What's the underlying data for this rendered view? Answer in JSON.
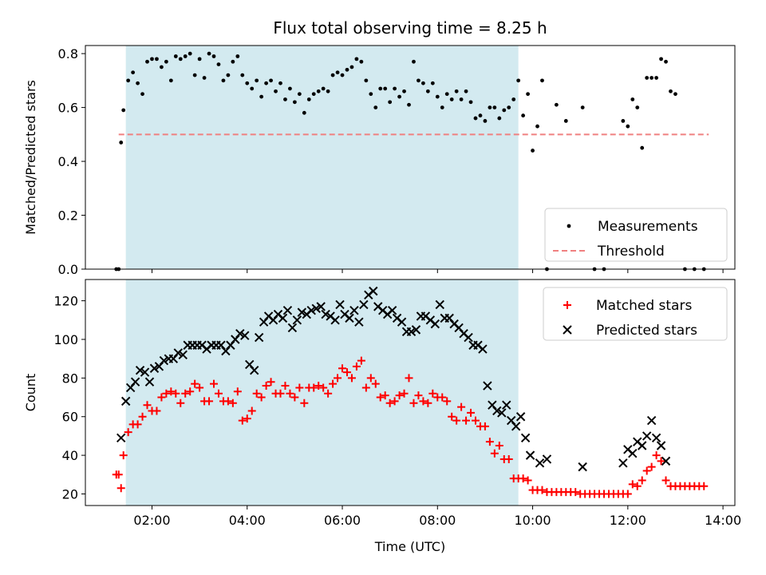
{
  "title": "Flux total observing time = 8.25 h",
  "chart_data": [
    {
      "type": "scatter",
      "panel": "top",
      "ylabel": "Matched/Predicted stars",
      "xlim": [
        0.6,
        14.25
      ],
      "ylim": [
        0,
        0.83
      ],
      "yticks": [
        0,
        0.2,
        0.4,
        0.6,
        0.8
      ],
      "ytick_labels": [
        "0.0",
        "0.2",
        "0.4",
        "0.6",
        "0.8"
      ],
      "shaded_interval": {
        "x": [
          1.45,
          9.7
        ],
        "color": "#d3eaf0"
      },
      "legend": {
        "placement": "lower-right",
        "entries": [
          "Measurements",
          "Threshold"
        ]
      },
      "threshold": {
        "name": "Threshold",
        "value": 0.5,
        "x": [
          1.3,
          13.7
        ],
        "color": "#f08080",
        "style": "dashed"
      },
      "series": [
        {
          "name": "Measurements",
          "color": "#000000",
          "marker": "dot",
          "x": [
            1.25,
            1.3,
            1.35,
            1.4,
            1.5,
            1.6,
            1.7,
            1.8,
            1.9,
            2.0,
            2.1,
            2.2,
            2.3,
            2.4,
            2.5,
            2.6,
            2.7,
            2.8,
            2.9,
            3.0,
            3.1,
            3.2,
            3.3,
            3.4,
            3.5,
            3.6,
            3.7,
            3.8,
            3.9,
            4.0,
            4.1,
            4.2,
            4.3,
            4.4,
            4.5,
            4.6,
            4.7,
            4.8,
            4.9,
            5.0,
            5.1,
            5.2,
            5.3,
            5.4,
            5.5,
            5.6,
            5.7,
            5.8,
            5.9,
            6.0,
            6.1,
            6.2,
            6.3,
            6.4,
            6.5,
            6.6,
            6.7,
            6.8,
            6.9,
            7.0,
            7.1,
            7.2,
            7.3,
            7.4,
            7.5,
            7.6,
            7.7,
            7.8,
            7.9,
            8.0,
            8.1,
            8.2,
            8.3,
            8.4,
            8.5,
            8.6,
            8.7,
            8.8,
            8.9,
            9.0,
            9.1,
            9.2,
            9.3,
            9.4,
            9.5,
            9.6,
            9.7,
            9.8,
            9.9,
            10.0,
            10.1,
            10.2,
            10.3,
            10.5,
            10.7,
            11.05,
            11.3,
            11.5,
            11.9,
            12.0,
            12.1,
            12.2,
            12.3,
            12.4,
            12.5,
            12.6,
            12.7,
            12.8,
            12.9,
            13.0,
            13.2,
            13.4,
            13.6
          ],
          "y": [
            0.0,
            0.0,
            0.47,
            0.59,
            0.7,
            0.73,
            0.69,
            0.65,
            0.77,
            0.78,
            0.78,
            0.75,
            0.77,
            0.7,
            0.79,
            0.78,
            0.79,
            0.8,
            0.72,
            0.78,
            0.71,
            0.8,
            0.79,
            0.76,
            0.7,
            0.72,
            0.77,
            0.79,
            0.72,
            0.69,
            0.67,
            0.7,
            0.64,
            0.69,
            0.7,
            0.66,
            0.69,
            0.63,
            0.67,
            0.62,
            0.65,
            0.58,
            0.63,
            0.65,
            0.66,
            0.67,
            0.66,
            0.72,
            0.73,
            0.72,
            0.74,
            0.75,
            0.78,
            0.77,
            0.7,
            0.65,
            0.6,
            0.67,
            0.67,
            0.62,
            0.67,
            0.64,
            0.66,
            0.61,
            0.77,
            0.7,
            0.69,
            0.66,
            0.69,
            0.64,
            0.6,
            0.65,
            0.63,
            0.66,
            0.63,
            0.66,
            0.62,
            0.56,
            0.57,
            0.55,
            0.6,
            0.6,
            0.56,
            0.59,
            0.6,
            0.63,
            0.7,
            0.57,
            0.65,
            0.44,
            0.53,
            0.7,
            0.0,
            0.61,
            0.55,
            0.6,
            0.0,
            0.0,
            0.55,
            0.53,
            0.63,
            0.6,
            0.45,
            0.71,
            0.71,
            0.71,
            0.78,
            0.77,
            0.66,
            0.65,
            0.0,
            0.0,
            0.0
          ]
        }
      ]
    },
    {
      "type": "scatter",
      "panel": "bottom",
      "xlabel": "Time (UTC)",
      "ylabel": "Count",
      "xlim": [
        0.6,
        14.25
      ],
      "ylim": [
        14,
        131
      ],
      "xticks": [
        2,
        4,
        6,
        8,
        10,
        12,
        14
      ],
      "xtick_labels": [
        "02:00",
        "04:00",
        "06:00",
        "08:00",
        "10:00",
        "12:00",
        "14:00"
      ],
      "yticks": [
        20,
        40,
        60,
        80,
        100,
        120
      ],
      "ytick_labels": [
        "20",
        "40",
        "60",
        "80",
        "100",
        "120"
      ],
      "shaded_interval": {
        "x": [
          1.45,
          9.7
        ],
        "color": "#d3eaf0"
      },
      "legend": {
        "placement": "top-right",
        "entries": [
          "Matched stars",
          "Predicted stars"
        ]
      },
      "series": [
        {
          "name": "Matched stars",
          "color": "#ff0000",
          "marker": "plus",
          "x": [
            1.25,
            1.3,
            1.35,
            1.4,
            1.5,
            1.6,
            1.7,
            1.8,
            1.9,
            2.0,
            2.1,
            2.2,
            2.3,
            2.4,
            2.5,
            2.6,
            2.7,
            2.8,
            2.9,
            3.0,
            3.1,
            3.2,
            3.3,
            3.4,
            3.5,
            3.6,
            3.7,
            3.8,
            3.9,
            4.0,
            4.1,
            4.2,
            4.3,
            4.4,
            4.5,
            4.6,
            4.7,
            4.8,
            4.9,
            5.0,
            5.1,
            5.2,
            5.3,
            5.4,
            5.5,
            5.6,
            5.7,
            5.8,
            5.9,
            6.0,
            6.1,
            6.2,
            6.3,
            6.4,
            6.5,
            6.6,
            6.7,
            6.8,
            6.9,
            7.0,
            7.1,
            7.2,
            7.3,
            7.4,
            7.5,
            7.6,
            7.7,
            7.8,
            7.9,
            8.0,
            8.1,
            8.2,
            8.3,
            8.4,
            8.5,
            8.6,
            8.7,
            8.8,
            8.9,
            9.0,
            9.1,
            9.2,
            9.3,
            9.4,
            9.5,
            9.6,
            9.7,
            9.8,
            9.9,
            10.0,
            10.1,
            10.2,
            10.3,
            10.4,
            10.5,
            10.6,
            10.7,
            10.8,
            10.9,
            11.0,
            11.1,
            11.2,
            11.3,
            11.4,
            11.5,
            11.6,
            11.7,
            11.8,
            11.9,
            12.0,
            12.1,
            12.2,
            12.3,
            12.4,
            12.5,
            12.6,
            12.7,
            12.8,
            12.9,
            13.0,
            13.1,
            13.2,
            13.3,
            13.4,
            13.5,
            13.6
          ],
          "y": [
            30,
            30,
            23,
            40,
            52,
            56,
            56,
            60,
            66,
            63,
            63,
            70,
            72,
            73,
            72,
            67,
            72,
            73,
            77,
            75,
            68,
            68,
            77,
            72,
            68,
            68,
            67,
            73,
            58,
            59,
            63,
            72,
            70,
            76,
            78,
            72,
            72,
            76,
            72,
            70,
            75,
            67,
            75,
            75,
            76,
            75,
            72,
            77,
            80,
            85,
            83,
            80,
            86,
            89,
            75,
            80,
            77,
            70,
            71,
            67,
            68,
            71,
            72,
            80,
            67,
            71,
            68,
            67,
            72,
            70,
            70,
            68,
            60,
            58,
            65,
            58,
            62,
            58,
            55,
            55,
            47,
            41,
            45,
            38,
            38,
            28,
            28,
            28,
            27,
            22,
            22,
            22,
            21,
            21,
            21,
            21,
            21,
            21,
            21,
            20,
            20,
            20,
            20,
            20,
            20,
            20,
            20,
            20,
            20,
            20,
            25,
            24,
            27,
            32,
            34,
            40,
            37,
            27,
            24,
            24,
            24,
            24,
            24,
            24,
            24,
            24
          ]
        },
        {
          "name": "Predicted stars",
          "color": "#000000",
          "marker": "x",
          "x": [
            1.35,
            1.45,
            1.55,
            1.65,
            1.75,
            1.85,
            1.95,
            2.05,
            2.15,
            2.25,
            2.35,
            2.45,
            2.55,
            2.65,
            2.75,
            2.85,
            2.95,
            3.05,
            3.15,
            3.25,
            3.35,
            3.45,
            3.55,
            3.65,
            3.75,
            3.85,
            3.95,
            4.05,
            4.15,
            4.25,
            4.35,
            4.45,
            4.55,
            4.65,
            4.75,
            4.85,
            4.95,
            5.05,
            5.15,
            5.25,
            5.35,
            5.45,
            5.55,
            5.65,
            5.75,
            5.85,
            5.95,
            6.05,
            6.15,
            6.25,
            6.35,
            6.45,
            6.55,
            6.65,
            6.75,
            6.85,
            6.95,
            7.05,
            7.15,
            7.25,
            7.35,
            7.45,
            7.55,
            7.65,
            7.75,
            7.85,
            7.95,
            8.05,
            8.15,
            8.25,
            8.35,
            8.45,
            8.55,
            8.65,
            8.75,
            8.85,
            8.95,
            9.05,
            9.15,
            9.25,
            9.35,
            9.45,
            9.55,
            9.65,
            9.75,
            9.85,
            9.95,
            10.15,
            10.3,
            11.05,
            11.9,
            12.0,
            12.1,
            12.2,
            12.3,
            12.4,
            12.5,
            12.6,
            12.7,
            12.8
          ],
          "y": [
            49,
            68,
            75,
            78,
            84,
            83,
            78,
            85,
            86,
            89,
            90,
            90,
            93,
            92,
            97,
            97,
            97,
            97,
            95,
            97,
            97,
            97,
            94,
            97,
            100,
            103,
            102,
            87,
            84,
            101,
            109,
            112,
            110,
            113,
            111,
            115,
            106,
            110,
            114,
            113,
            115,
            116,
            117,
            113,
            112,
            110,
            118,
            113,
            111,
            115,
            109,
            118,
            123,
            125,
            117,
            115,
            113,
            115,
            111,
            109,
            104,
            104,
            105,
            112,
            112,
            110,
            108,
            118,
            111,
            111,
            108,
            106,
            103,
            101,
            97,
            97,
            95,
            76,
            66,
            63,
            62,
            66,
            58,
            55,
            60,
            49,
            40,
            36,
            38,
            34,
            36,
            43,
            41,
            47,
            45,
            50,
            58,
            49,
            45,
            37
          ]
        }
      ]
    }
  ]
}
